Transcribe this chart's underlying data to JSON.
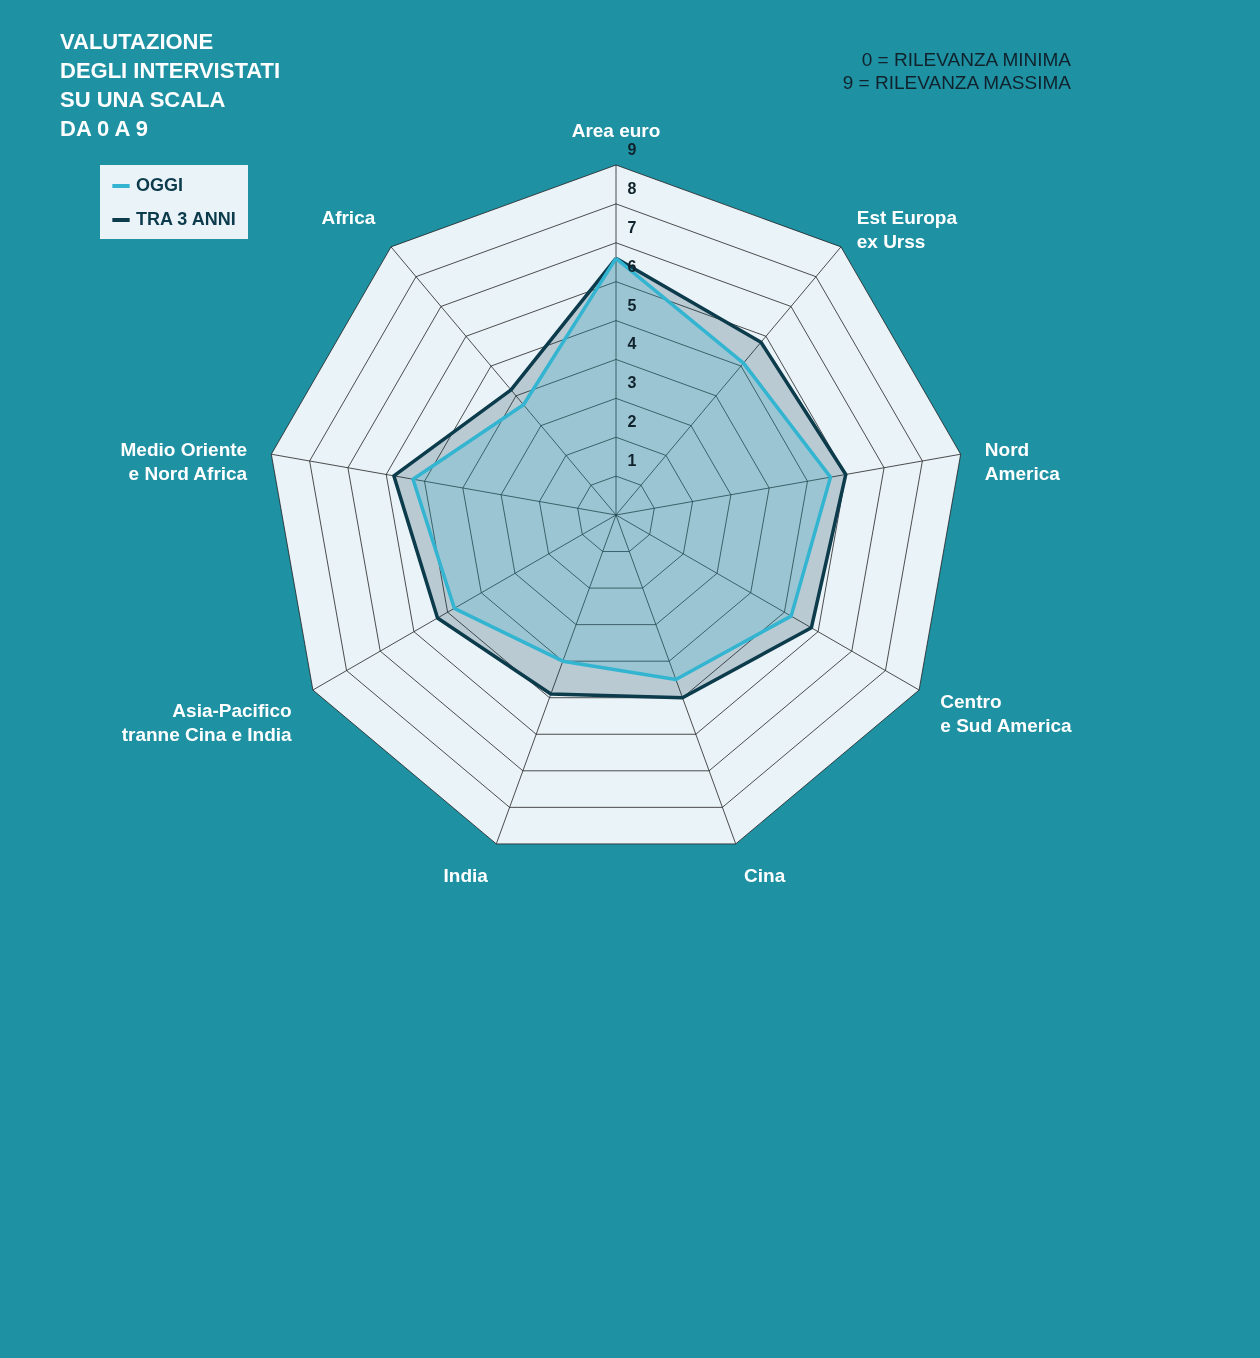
{
  "chart_data": {
    "type": "radar",
    "title": "VALUTAZIONE\nDEGLI INTERVISTATI\nSU UNA SCALA\nDA 0 A 9",
    "annotations": [
      "0 = RILEVANZA MINIMA",
      "9 = RILEVANZA MASSIMA"
    ],
    "categories": [
      "Area euro",
      "Est Europa\nex Urss",
      "Nord\nAmerica",
      "Centro\ne Sud America",
      "Cina",
      "India",
      "Asia-Pacifico\ntranne Cina e India",
      "Medio Oriente\ne Nord Africa",
      "Africa"
    ],
    "series": [
      {
        "name": "OGGI",
        "color": "#33b5d1",
        "values": [
          6.6,
          5.1,
          5.6,
          5.2,
          4.5,
          4.0,
          4.8,
          5.3,
          3.7
        ]
      },
      {
        "name": "TRA 3 ANNI",
        "color": "#0c3b4c",
        "values": [
          6.6,
          5.8,
          6.0,
          5.8,
          5.0,
          4.9,
          5.3,
          5.8,
          4.2
        ]
      }
    ],
    "ylim": [
      0,
      9
    ],
    "yticks": [
      1,
      2,
      3,
      4,
      5,
      6,
      7,
      8,
      9
    ],
    "grid": true,
    "legend": "left",
    "marker": "none"
  }
}
